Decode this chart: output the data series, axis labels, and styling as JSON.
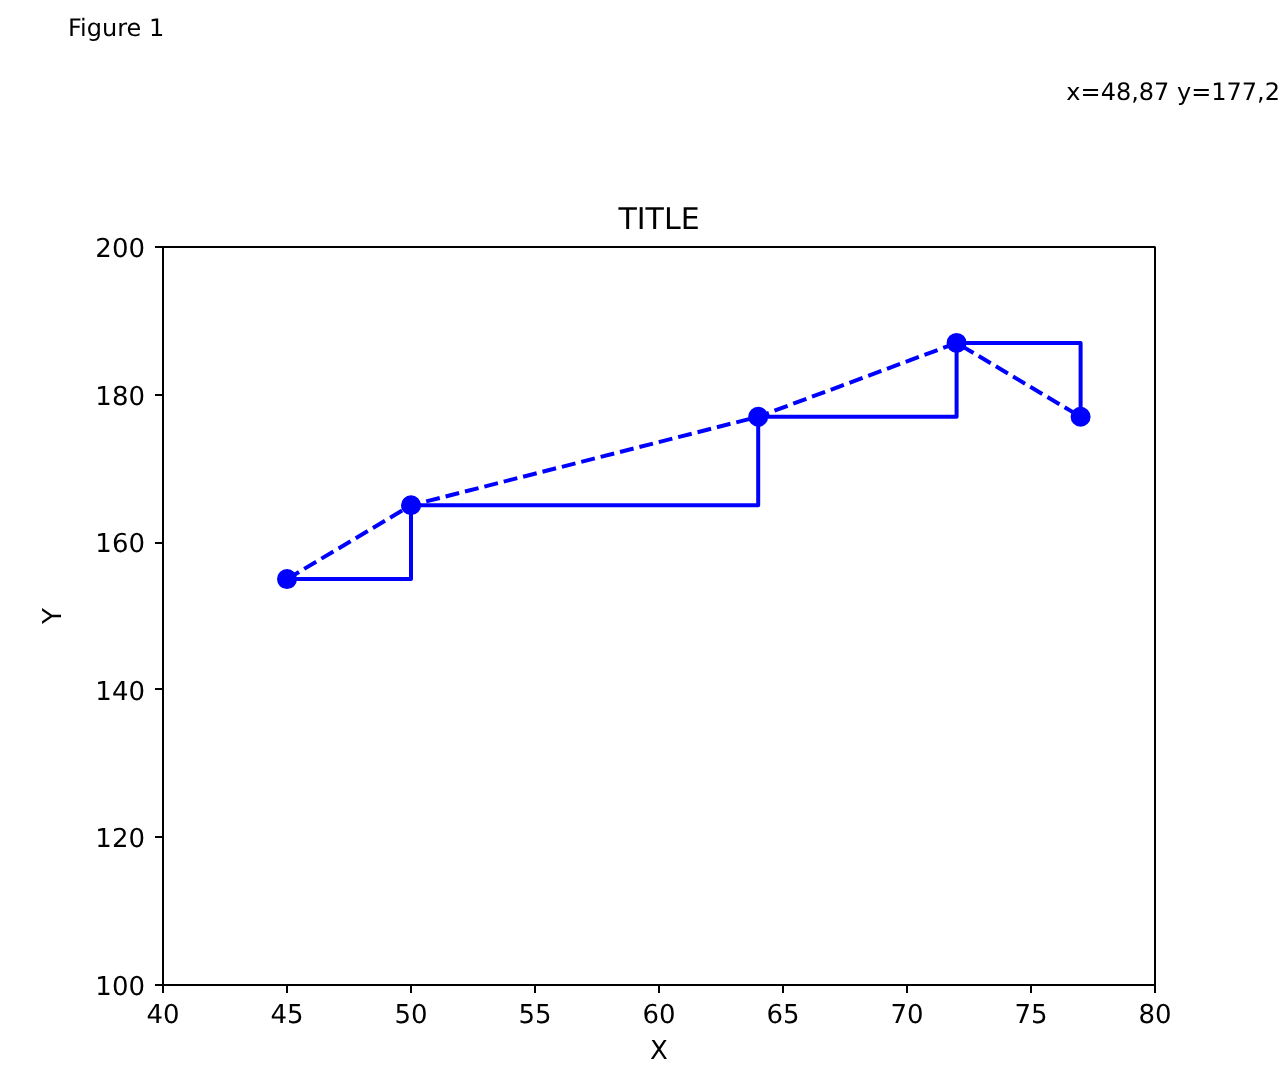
{
  "chart_data": {
    "type": "line",
    "title": "TITLE",
    "xlabel": "X",
    "ylabel": "Y",
    "x": [
      45,
      50,
      64,
      72,
      77
    ],
    "series": [
      {
        "color": "#0000ff",
        "values": [
          155,
          165,
          177,
          187,
          177
        ],
        "line_style": "dashed",
        "marker": "circle"
      },
      {
        "type": "step",
        "color": "#0000ff",
        "values": [
          155,
          165,
          177,
          187,
          177
        ],
        "line_style": "solid"
      }
    ],
    "xlim": [
      40,
      80
    ],
    "ylim": [
      100,
      200
    ],
    "xticks": [
      40,
      45,
      50,
      55,
      60,
      65,
      70,
      75,
      80
    ],
    "yticks": [
      100,
      120,
      140,
      160,
      180,
      200
    ],
    "grid": false,
    "annotations": [
      "Figure 1",
      "x=48,87 y=177,2"
    ]
  }
}
